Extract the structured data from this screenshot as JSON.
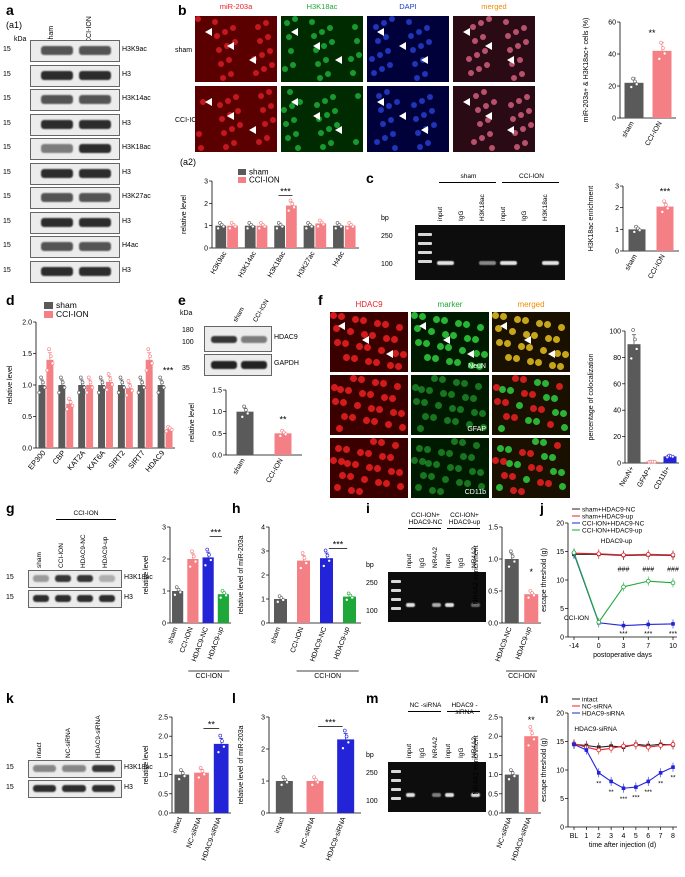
{
  "labels": {
    "a": "a",
    "a1": "(a1)",
    "a2": "(a2)",
    "b": "b",
    "c": "c",
    "d": "d",
    "e": "e",
    "f": "f",
    "g": "g",
    "h": "h",
    "i": "i",
    "j": "j",
    "k": "k",
    "l": "l",
    "m": "m",
    "n": "n"
  },
  "panel_a": {
    "kda": "kDa",
    "lanes": [
      "sham",
      "CCI-ION"
    ],
    "rows": [
      {
        "mw": "15",
        "name": "H3K9ac"
      },
      {
        "mw": "15",
        "name": "H3"
      },
      {
        "mw": "15",
        "name": "H3K14ac"
      },
      {
        "mw": "15",
        "name": "H3"
      },
      {
        "mw": "15",
        "name": "H3K18ac"
      },
      {
        "mw": "15",
        "name": "H3"
      },
      {
        "mw": "15",
        "name": "H3K27ac"
      },
      {
        "mw": "15",
        "name": "H3"
      },
      {
        "mw": "15",
        "name": "H4ac"
      },
      {
        "mw": "15",
        "name": "H3"
      }
    ]
  },
  "panel_b": {
    "cols": [
      "miR-203a",
      "H3K18ac",
      "DAPI",
      "merged"
    ],
    "col_colors": [
      "#e8202a",
      "#1fa83a",
      "#1a3cc8",
      "#f08c00"
    ],
    "rows": [
      "sham",
      "CCI-ION"
    ],
    "chart_data": {
      "type": "bar",
      "categories": [
        "sham",
        "CCI-ION"
      ],
      "values": [
        22,
        42
      ],
      "errors": [
        3,
        5
      ],
      "ylabel": "miR-203a+ & H3K18ac+ cells (%)",
      "ylim": [
        0,
        60
      ],
      "yticks": [
        "0",
        "20",
        "40",
        "60"
      ],
      "significance": "**"
    }
  },
  "panel_a2": {
    "chart_data": {
      "type": "bar",
      "categories": [
        "H3K9ac",
        "H3K14ac",
        "H3K18ac",
        "H3K27ac",
        "H4ac"
      ],
      "series": [
        {
          "name": "sham",
          "values": [
            1.0,
            1.0,
            1.0,
            1.0,
            1.0
          ],
          "color": "#5a5a5a"
        },
        {
          "name": "CCI-ION",
          "values": [
            1.0,
            1.0,
            1.9,
            1.1,
            1.0
          ],
          "color": "#f47f84"
        }
      ],
      "ylabel": "relative level",
      "ylim": [
        0,
        3
      ],
      "yticks": [
        "0",
        "1",
        "2",
        "3"
      ],
      "significance": "***"
    }
  },
  "panel_c": {
    "bp": "bp",
    "ladder": [
      "250",
      "100"
    ],
    "groups": [
      "sham",
      "CCI-ION"
    ],
    "lanes": [
      "input",
      "IgG",
      "H3K18ac",
      "input",
      "IgG",
      "H3K18ac"
    ],
    "chart_data": {
      "type": "bar",
      "categories": [
        "sham",
        "CCI-ION"
      ],
      "values": [
        1.0,
        2.05
      ],
      "ylabel": "H3K18ac enrichment",
      "ylim": [
        0,
        3
      ],
      "yticks": [
        "0",
        "1",
        "2",
        "3"
      ],
      "significance": "***"
    }
  },
  "panel_d": {
    "chart_data": {
      "type": "bar",
      "categories": [
        "EP300",
        "CBP",
        "KAT2A",
        "KAT6A",
        "SIRT2",
        "SIRT7",
        "HDAC9"
      ],
      "series": [
        {
          "name": "sham",
          "values": [
            1.0,
            1.0,
            1.0,
            1.0,
            1.0,
            1.0,
            1.0
          ],
          "color": "#5a5a5a"
        },
        {
          "name": "CCI-ION",
          "values": [
            1.4,
            0.7,
            1.0,
            1.05,
            0.95,
            1.4,
            0.3
          ],
          "color": "#f47f84"
        }
      ],
      "ylabel": "relative level",
      "ylim": [
        0,
        2.0
      ],
      "yticks": [
        "0.0",
        "0.5",
        "1.0",
        "1.5",
        "2.0"
      ],
      "significance": "***"
    }
  },
  "panel_e": {
    "kda": "kDa",
    "mw": [
      "180",
      "100",
      "35"
    ],
    "lanes": [
      "sham",
      "CCI-ION"
    ],
    "bands": [
      "HDAC9",
      "GAPDH"
    ],
    "chart_data": {
      "type": "bar",
      "categories": [
        "sham",
        "CCI-ION"
      ],
      "values": [
        1.0,
        0.5
      ],
      "ylabel": "relative level",
      "ylim": [
        0,
        1.5
      ],
      "yticks": [
        "0.0",
        "0.5",
        "1.0",
        "1.5"
      ],
      "significance": "**"
    }
  },
  "panel_f": {
    "cols": [
      "HDAC9",
      "marker",
      "merged"
    ],
    "col_colors": [
      "#e8202a",
      "#1fa83a",
      "#f08c00"
    ],
    "row_markers": [
      "NeuN",
      "GFAP",
      "CD11b"
    ],
    "chart_data": {
      "type": "bar",
      "categories": [
        "NeuN+",
        "GFAP+",
        "CD11b+"
      ],
      "values": [
        90,
        1,
        5
      ],
      "ylabel": "percentage of colocalization",
      "ylim": [
        0,
        100
      ],
      "yticks": [
        "0",
        "20",
        "40",
        "60",
        "80",
        "100"
      ]
    }
  },
  "panel_g": {
    "header": "CCI-ION",
    "lanes": [
      "sham",
      "CCI-ION",
      "HDAC9-NC",
      "HDAC9-up"
    ],
    "mw": [
      "15",
      "15"
    ],
    "bands": [
      "H3K18ac",
      "H3"
    ],
    "chart_data": {
      "type": "bar",
      "categories": [
        "sham",
        "CCI-ION",
        "HDAC9-NC",
        "HDAC9-up"
      ],
      "values": [
        1.0,
        2.0,
        2.05,
        0.9
      ],
      "colors": [
        "#5a5a5a",
        "#f47f84",
        "#2323d8",
        "#1fa83a"
      ],
      "ylabel": "relative level",
      "ylim": [
        0,
        3
      ],
      "yticks": [
        "0",
        "1",
        "2",
        "3"
      ],
      "significance": "***",
      "group_label": "CCI-ION"
    }
  },
  "panel_h": {
    "chart_data": {
      "type": "bar",
      "categories": [
        "sham",
        "CCI-ION",
        "HDAC9-NC",
        "HDAC9-up"
      ],
      "values": [
        1.0,
        2.6,
        2.7,
        1.1
      ],
      "colors": [
        "#5a5a5a",
        "#f47f84",
        "#2323d8",
        "#1fa83a"
      ],
      "ylabel": "relative level of miR-203a",
      "ylim": [
        0,
        4
      ],
      "yticks": [
        "0",
        "1",
        "2",
        "3",
        "4"
      ],
      "significance": "***",
      "group_label": "CCI-ION"
    }
  },
  "panel_i": {
    "bp": "bp",
    "ladder": [
      "250",
      "100"
    ],
    "groups": [
      "CCI-ION+ HDAC9-NC",
      "CCI-ION+ HDAC9-up"
    ],
    "lanes": [
      "input",
      "IgG",
      "NR4A2",
      "input",
      "IgG",
      "NR4A2"
    ],
    "chart_data": {
      "type": "bar",
      "categories": [
        "HDAC9-NC",
        "HDAC9-up"
      ],
      "values": [
        1.0,
        0.45
      ],
      "colors": [
        "#5a5a5a",
        "#f47f84"
      ],
      "ylabel": "NR4A2 enrichment",
      "ylim": [
        0,
        1.5
      ],
      "yticks": [
        "0.0",
        "0.5",
        "1.0",
        "1.5"
      ],
      "significance": "*",
      "group_label": "CCI-ION"
    }
  },
  "panel_j": {
    "chart_data": {
      "type": "line",
      "x": [
        -14,
        0,
        3,
        7,
        10
      ],
      "xticks": [
        "-14",
        "0",
        "3",
        "7",
        "10"
      ],
      "series": [
        {
          "name": "sham+HDAC9-NC",
          "values": [
            14.5,
            14.5,
            14.3,
            14.4,
            14.3
          ],
          "color": "#222222"
        },
        {
          "name": "sham+HDAC9-up",
          "values": [
            14.7,
            14.6,
            14.4,
            14.5,
            14.4
          ],
          "color": "#e8202a"
        },
        {
          "name": "CCI-ION+HDAC9-NC",
          "values": [
            14.6,
            2.5,
            2.0,
            2.2,
            2.3
          ],
          "color": "#2323d8"
        },
        {
          "name": "CCI-ION+HDAC9-up",
          "values": [
            14.8,
            2.6,
            8.8,
            9.8,
            9.5
          ],
          "color": "#1fa83a"
        }
      ],
      "xlabel": "postoperative days",
      "ylabel": "escape threshold (g)",
      "ylim": [
        0,
        20
      ],
      "yticks": [
        "0",
        "5",
        "10",
        "15",
        "20"
      ],
      "annotations": [
        "CCI-ION",
        "HDAC9-up",
        "***",
        "***",
        "***",
        "###",
        "###",
        "###"
      ]
    }
  },
  "panel_k": {
    "lanes": [
      "intact",
      "NC-siRNA",
      "HDAC9-siRNA"
    ],
    "mw": [
      "15",
      "15"
    ],
    "bands": [
      "H3K18ac",
      "H3"
    ],
    "chart_data": {
      "type": "bar",
      "categories": [
        "intact",
        "NC-siRNA",
        "HDAC9-siRNA"
      ],
      "values": [
        1.0,
        1.05,
        1.8
      ],
      "colors": [
        "#5a5a5a",
        "#f47f84",
        "#2323d8"
      ],
      "ylabel": "relative level",
      "ylim": [
        0,
        2.5
      ],
      "yticks": [
        "0.0",
        "0.5",
        "1.0",
        "1.5",
        "2.0",
        "2.5"
      ],
      "significance": "**"
    }
  },
  "panel_l": {
    "chart_data": {
      "type": "bar",
      "categories": [
        "intact",
        "NC-siRNA",
        "HDAC9-siRNA"
      ],
      "values": [
        1.0,
        1.0,
        2.3
      ],
      "colors": [
        "#5a5a5a",
        "#f47f84",
        "#2323d8"
      ],
      "ylabel": "relative level of miR-203a",
      "ylim": [
        0,
        3
      ],
      "yticks": [
        "0",
        "1",
        "2",
        "3"
      ],
      "significance": "***"
    }
  },
  "panel_m": {
    "bp": "bp",
    "ladder": [
      "250",
      "100"
    ],
    "groups": [
      "NC -siRNA",
      "HDAC9 -siRNA"
    ],
    "lanes": [
      "input",
      "IgG",
      "NR4A2",
      "input",
      "IgG",
      "NR4A2"
    ],
    "chart_data": {
      "type": "bar",
      "categories": [
        "NC-siRNA",
        "HDAC9-siRNA"
      ],
      "values": [
        1.0,
        2.0
      ],
      "colors": [
        "#5a5a5a",
        "#f47f84"
      ],
      "ylabel": "NR4A2 enrichment",
      "ylim": [
        0,
        2.5
      ],
      "yticks": [
        "0.0",
        "0.5",
        "1.0",
        "1.5",
        "2.0",
        "2.5"
      ],
      "significance": "**"
    }
  },
  "panel_n": {
    "chart_data": {
      "type": "line",
      "xticks": [
        "BL",
        "1",
        "2",
        "3",
        "4",
        "5",
        "6",
        "7",
        "8"
      ],
      "series": [
        {
          "name": "intact",
          "values": [
            14.5,
            14.3,
            14.0,
            14.2,
            14.0,
            14.5,
            14.3,
            14.5,
            14.4
          ],
          "color": "#222222"
        },
        {
          "name": "NC-siRNA",
          "values": [
            14.6,
            14.0,
            13.5,
            13.8,
            14.2,
            14.4,
            14.0,
            14.3,
            14.5
          ],
          "color": "#e8202a"
        },
        {
          "name": "HDAC9-siRNA",
          "values": [
            14.5,
            13.5,
            9.5,
            8.0,
            6.8,
            7.0,
            8.0,
            9.5,
            10.5
          ],
          "color": "#2323d8"
        }
      ],
      "xlabel": "time after injection (d)",
      "ylabel": "escape threshold (g)",
      "ylim": [
        0,
        20
      ],
      "yticks": [
        "0",
        "5",
        "10",
        "15",
        "20"
      ],
      "annotations": [
        "HDAC9-siRNA",
        "**",
        "**",
        "***",
        "***",
        "***",
        "**",
        "**"
      ]
    }
  }
}
